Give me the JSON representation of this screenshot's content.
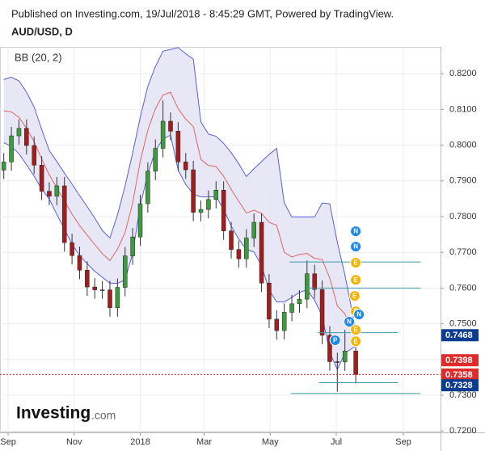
{
  "chart_data": {
    "type": "candlestick",
    "published": "Published on Investing.com, 19/Jul/2018 - 8:45:29 GMT, Powered by TradingView.",
    "symbol": "AUD/USD, D",
    "indicator": "BB (20, 2)",
    "logo": {
      "name": "Investing",
      "suffix": ".com"
    },
    "x": [
      -4,
      3,
      10,
      17,
      24,
      31,
      38,
      45,
      52,
      59,
      66,
      73,
      80,
      87,
      94,
      101,
      108,
      115,
      122,
      129,
      136,
      143,
      150,
      157,
      164,
      171,
      178,
      185,
      192,
      199,
      206,
      213,
      220,
      227,
      234,
      241,
      248,
      255,
      262,
      269,
      276,
      283,
      290,
      297,
      304,
      311,
      321
    ],
    "open": [
      0.793,
      0.7953,
      0.8026,
      0.8047,
      0.7999,
      0.7944,
      0.7871,
      0.7857,
      0.7886,
      0.7727,
      0.7691,
      0.765,
      0.7603,
      0.7595,
      0.7595,
      0.7545,
      0.7602,
      0.769,
      0.7743,
      0.7836,
      0.7927,
      0.7991,
      0.8067,
      0.8039,
      0.7953,
      0.7931,
      0.7812,
      0.782,
      0.7848,
      0.7874,
      0.776,
      0.7708,
      0.7682,
      0.774,
      0.7784,
      0.7614,
      0.7513,
      0.7481,
      0.7532,
      0.7556,
      0.7569,
      0.764,
      0.7596,
      0.7468,
      0.7394,
      0.7393,
      0.7424
    ],
    "high": [
      0.7978,
      0.8051,
      0.8072,
      0.8072,
      0.8024,
      0.7969,
      0.7896,
      0.7911,
      0.7911,
      0.7752,
      0.7716,
      0.7675,
      0.7628,
      0.762,
      0.762,
      0.7627,
      0.7715,
      0.7768,
      0.7861,
      0.7952,
      0.8016,
      0.8125,
      0.8092,
      0.8064,
      0.7978,
      0.7956,
      0.7845,
      0.7873,
      0.7899,
      0.7899,
      0.7785,
      0.7733,
      0.7765,
      0.7809,
      0.7809,
      0.7639,
      0.7538,
      0.7557,
      0.7581,
      0.7594,
      0.7677,
      0.7665,
      0.7621,
      0.7493,
      0.7419,
      0.7483,
      0.7449
    ],
    "low": [
      0.7905,
      0.7928,
      0.8001,
      0.7974,
      0.7919,
      0.7846,
      0.7832,
      0.7832,
      0.7702,
      0.7666,
      0.7625,
      0.7578,
      0.757,
      0.757,
      0.752,
      0.752,
      0.7577,
      0.7665,
      0.7718,
      0.7811,
      0.7902,
      0.7966,
      0.8014,
      0.7928,
      0.7906,
      0.7787,
      0.7787,
      0.7795,
      0.7823,
      0.7735,
      0.7683,
      0.7657,
      0.7657,
      0.7715,
      0.7589,
      0.7488,
      0.7456,
      0.7456,
      0.7507,
      0.7531,
      0.7544,
      0.7571,
      0.7443,
      0.7369,
      0.731,
      0.7368,
      0.7333
    ],
    "close": [
      0.7953,
      0.8026,
      0.8047,
      0.7999,
      0.7944,
      0.7871,
      0.7857,
      0.7886,
      0.7727,
      0.7691,
      0.765,
      0.7603,
      0.7595,
      0.7595,
      0.7545,
      0.7602,
      0.769,
      0.7743,
      0.7836,
      0.7927,
      0.7991,
      0.8067,
      0.8039,
      0.7953,
      0.7931,
      0.7812,
      0.782,
      0.7848,
      0.7874,
      0.776,
      0.7708,
      0.7682,
      0.774,
      0.7784,
      0.7614,
      0.7513,
      0.7481,
      0.7532,
      0.7556,
      0.7569,
      0.764,
      0.7596,
      0.7468,
      0.7394,
      0.7393,
      0.7424,
      0.7358
    ],
    "up_color": "#3c9b3c",
    "down_color": "#a31d1d",
    "bands": {
      "upper": [
        0.8184,
        0.819,
        0.818,
        0.8148,
        0.8107,
        0.8044,
        0.7985,
        0.7954,
        0.7922,
        0.7891,
        0.7859,
        0.7828,
        0.7796,
        0.7761,
        0.774,
        0.7805,
        0.7886,
        0.7978,
        0.8078,
        0.8165,
        0.822,
        0.8263,
        0.8268,
        0.8273,
        0.8256,
        0.8241,
        0.8065,
        0.8031,
        0.8025,
        0.8005,
        0.7979,
        0.7948,
        0.7912,
        0.7934,
        0.7954,
        0.7974,
        0.7991,
        0.7838,
        0.7799,
        0.7799,
        0.7799,
        0.7799,
        0.7838,
        0.7836,
        0.7728,
        0.7637,
        0.7483
      ],
      "middle": [
        0.8096,
        0.8093,
        0.8078,
        0.8047,
        0.801,
        0.7961,
        0.7917,
        0.788,
        0.7844,
        0.7807,
        0.7775,
        0.7748,
        0.7722,
        0.7696,
        0.7677,
        0.7709,
        0.7755,
        0.7838,
        0.7955,
        0.8042,
        0.8102,
        0.814,
        0.8148,
        0.8102,
        0.8073,
        0.8052,
        0.796,
        0.7943,
        0.794,
        0.7913,
        0.7876,
        0.7843,
        0.781,
        0.7818,
        0.7809,
        0.7784,
        0.7776,
        0.77,
        0.7687,
        0.7694,
        0.7697,
        0.7683,
        0.768,
        0.7628,
        0.755,
        0.7528,
        0.7461
      ],
      "lower": [
        0.8007,
        0.7996,
        0.7976,
        0.7945,
        0.7913,
        0.7877,
        0.7849,
        0.7806,
        0.7765,
        0.7723,
        0.7691,
        0.7668,
        0.7647,
        0.763,
        0.7614,
        0.7613,
        0.7623,
        0.7697,
        0.7831,
        0.7919,
        0.7984,
        0.8017,
        0.8028,
        0.793,
        0.789,
        0.7863,
        0.7855,
        0.7855,
        0.7855,
        0.7821,
        0.7773,
        0.7737,
        0.7708,
        0.7701,
        0.7663,
        0.7594,
        0.7561,
        0.7561,
        0.7574,
        0.7588,
        0.7595,
        0.7566,
        0.7522,
        0.742,
        0.7372,
        0.7418,
        0.7438
      ],
      "band_color": "#5a5ed8",
      "middle_color": "#e06464",
      "fill": "#e4e4f4"
    },
    "hlines": [
      {
        "value": 0.7673,
        "from": 260,
        "to": 381
      },
      {
        "value": 0.76,
        "from": 276,
        "to": 381
      },
      {
        "value": 0.7475,
        "from": 286,
        "to": 360
      },
      {
        "value": 0.7335,
        "from": 287,
        "to": 360
      },
      {
        "value": 0.7305,
        "from": 261,
        "to": 381
      }
    ],
    "hline_color": "#3a9aa8",
    "events": [
      {
        "label": "N",
        "x": 321,
        "y": 0.7759,
        "color": "#1e88e5"
      },
      {
        "label": "N",
        "x": 321,
        "y": 0.7716,
        "color": "#1e88e5"
      },
      {
        "label": "E",
        "x": 321,
        "y": 0.7671,
        "color": "#f4b400"
      },
      {
        "label": "E",
        "x": 321,
        "y": 0.7623,
        "color": "#f4b400"
      },
      {
        "label": "E",
        "x": 320,
        "y": 0.7578,
        "color": "#f4b400"
      },
      {
        "label": "E",
        "x": 321,
        "y": 0.7535,
        "color": "#f4b400"
      },
      {
        "label": "N",
        "x": 324,
        "y": 0.7526,
        "color": "#1e88e5"
      },
      {
        "label": "N",
        "x": 315,
        "y": 0.7506,
        "color": "#1e88e5"
      },
      {
        "label": "E",
        "x": 321,
        "y": 0.7483,
        "color": "#f4b400"
      },
      {
        "label": "E",
        "x": 321,
        "y": 0.7451,
        "color": "#f4b400"
      },
      {
        "label": "P",
        "x": 302,
        "y": 0.7454,
        "color": "#1e88e5"
      }
    ],
    "price_labels": [
      {
        "value": 0.7468,
        "color": "#0d3d91"
      },
      {
        "value": 0.7398,
        "color": "#e02b2b"
      },
      {
        "value": 0.7358,
        "color": "#e02b2b"
      },
      {
        "value": 0.7328,
        "color": "#0d3d91"
      }
    ],
    "last_price": 0.7358,
    "xlim": [
      -7.5,
      399.3
    ],
    "xticks": [
      {
        "value": 0,
        "label": "Sep"
      },
      {
        "value": 61,
        "label": "Nov"
      },
      {
        "value": 122,
        "label": "2018"
      },
      {
        "value": 181,
        "label": "Mar"
      },
      {
        "value": 242,
        "label": "May"
      },
      {
        "value": 303,
        "label": "Jul"
      },
      {
        "value": 365,
        "label": "Sep"
      }
    ],
    "ylim": [
      0.7196,
      0.8275
    ],
    "yticks": [
      {
        "value": 0.72,
        "label": "0.7200"
      },
      {
        "value": 0.73,
        "label": "0.7300"
      },
      {
        "value": 0.74,
        "label": "0.7400"
      },
      {
        "value": 0.75,
        "label": "0.7500"
      },
      {
        "value": 0.76,
        "label": "0.7600"
      },
      {
        "value": 0.77,
        "label": "0.7700"
      },
      {
        "value": 0.78,
        "label": "0.7800"
      },
      {
        "value": 0.79,
        "label": "0.7900"
      },
      {
        "value": 0.8,
        "label": "0.8000"
      },
      {
        "value": 0.81,
        "label": "0.8100"
      },
      {
        "value": 0.82,
        "label": "0.8200"
      }
    ],
    "grid": true
  }
}
